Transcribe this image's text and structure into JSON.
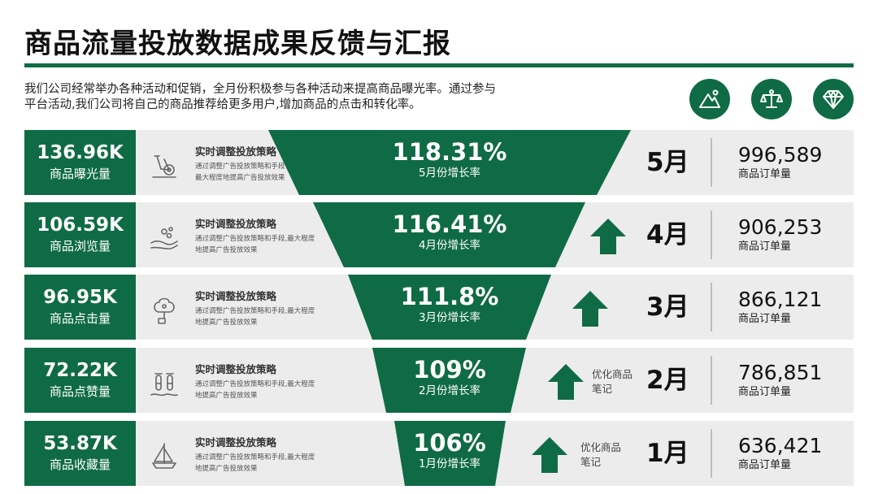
{
  "title": "商品流量投放数据成果反馈与汇报",
  "description": [
    "我们公司经常举办各种活动和促销，全月份积极参与各种活动来提高商品曝光率。通过参与",
    "平台活动,我们公司将自己的商品推荐给更多用户,增加商品的点击和转化率。"
  ],
  "accent_color": "#0f6b45",
  "top_icons": [
    "mountain-icon",
    "scale-icon",
    "diamond-icon"
  ],
  "rows": [
    {
      "value": "136.96K",
      "label": "商品曝光量",
      "icon": "exercise-bike-icon",
      "strategy_title": "实时调整投放策略",
      "strategy_desc": [
        "通过调整广告投放策略和手段",
        "最大程度地提高广告投放效果"
      ],
      "rate": "118.31%",
      "rate_label": "5月份增长率",
      "arrow": false,
      "note": [
        "",
        ""
      ],
      "month": "5月",
      "orders": "996,589",
      "orders_label": "商品订单量"
    },
    {
      "value": "106.59K",
      "label": "商品浏览量",
      "icon": "hand-water-icon",
      "strategy_title": "实时调整投放策略",
      "strategy_desc": [
        "通过调整广告投放策略和手段,最大程度",
        "地提高广告投放效果"
      ],
      "rate": "116.41%",
      "rate_label": "4月份增长率",
      "arrow": true,
      "note": [
        "",
        ""
      ],
      "month": "4月",
      "orders": "906,253",
      "orders_label": "商品订单量"
    },
    {
      "value": "96.95K",
      "label": "商品点击量",
      "icon": "tree-device-icon",
      "strategy_title": "实时调整投放策略",
      "strategy_desc": [
        "通过调整广告投放策略和手段,最大程度",
        "地提高广告投放效果"
      ],
      "rate": "111.8%",
      "rate_label": "3月份增长率",
      "arrow": true,
      "note": [
        "",
        ""
      ],
      "month": "3月",
      "orders": "866,121",
      "orders_label": "商品订单量"
    },
    {
      "value": "72.22K",
      "label": "商品点赞量",
      "icon": "test-tubes-icon",
      "strategy_title": "实时调整投放策略",
      "strategy_desc": [
        "通过调整广告投放策略和手段,最大程度",
        "地提高广告投放效果"
      ],
      "rate": "109%",
      "rate_label": "2月份增长率",
      "arrow": true,
      "note": [
        "优化商品",
        "笔记"
      ],
      "month": "2月",
      "orders": "786,851",
      "orders_label": "商品订单量"
    },
    {
      "value": "53.87K",
      "label": "商品收藏量",
      "icon": "sailboat-icon",
      "strategy_title": "实时调整投放策略",
      "strategy_desc": [
        "通过调整广告投放策略和手段,最大程度",
        "地提高广告投放效果"
      ],
      "rate": "106%",
      "rate_label": "1月份增长率",
      "arrow": true,
      "note": [
        "优化商品",
        "笔记"
      ],
      "month": "1月",
      "orders": "636,421",
      "orders_label": "商品订单量"
    }
  ]
}
